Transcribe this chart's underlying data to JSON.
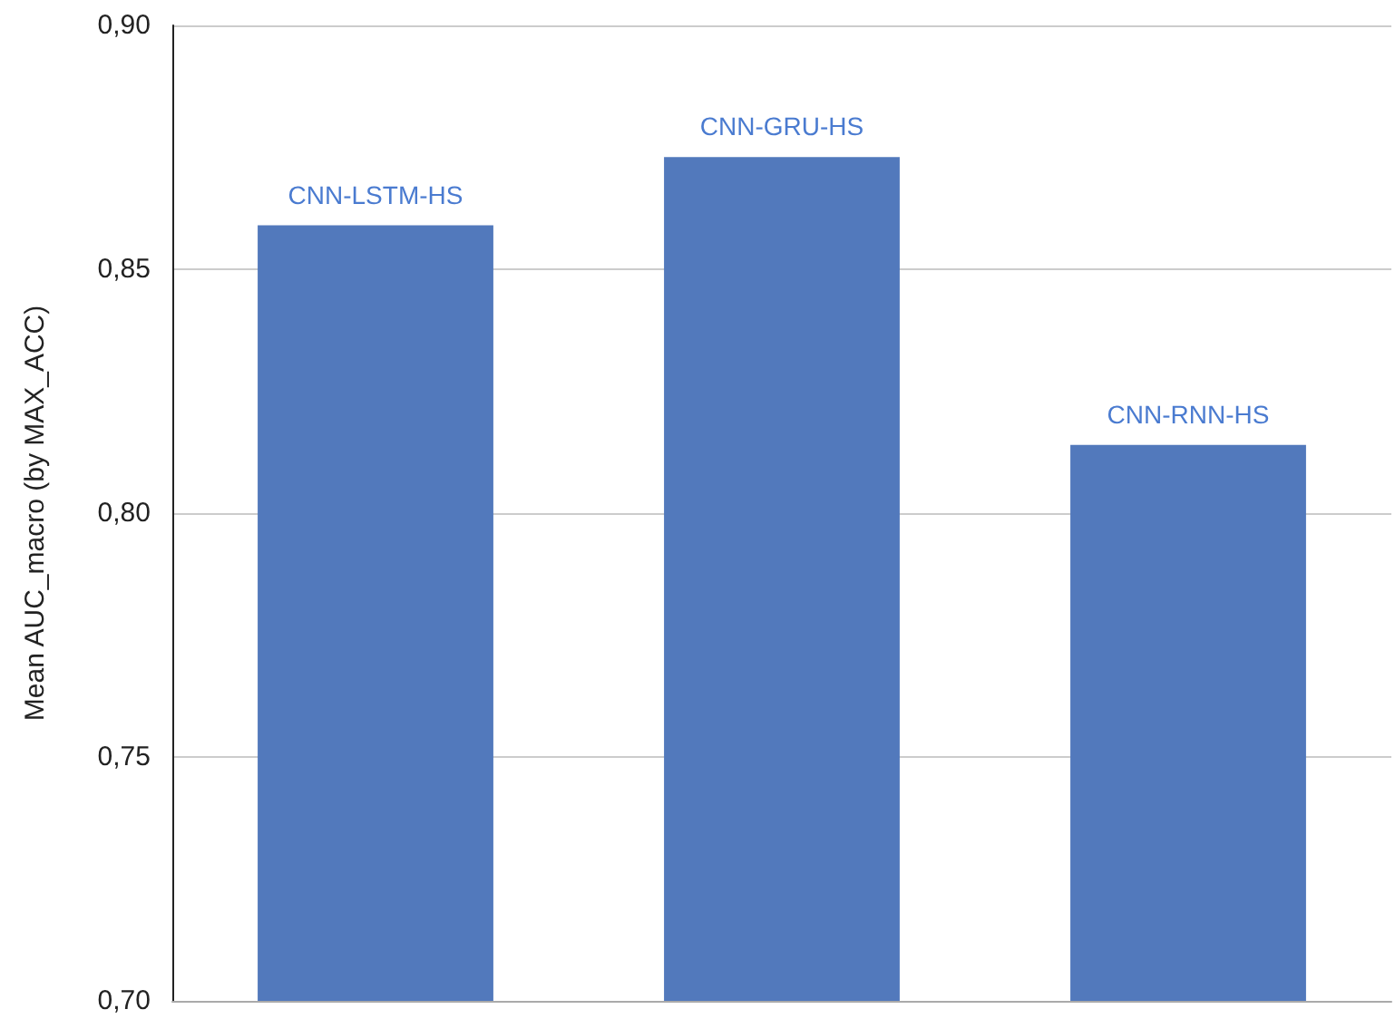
{
  "chart_data": {
    "type": "bar",
    "ylabel": "Mean AUC_macro (by MAX_ACC)",
    "categories": [
      "CNN-LSTM-HS",
      "CNN-GRU-HS",
      "CNN-RNN-HS"
    ],
    "values": [
      0.859,
      0.873,
      0.814
    ],
    "color": "#5279bc",
    "ylim": [
      0.7,
      0.9
    ],
    "yticks": [
      {
        "value": 0.7,
        "label": "0,70"
      },
      {
        "value": 0.75,
        "label": "0,75"
      },
      {
        "value": 0.8,
        "label": "0,80"
      },
      {
        "value": 0.85,
        "label": "0,85"
      },
      {
        "value": 0.9,
        "label": "0,90"
      }
    ],
    "grid": "y",
    "tick_labels": "y"
  }
}
